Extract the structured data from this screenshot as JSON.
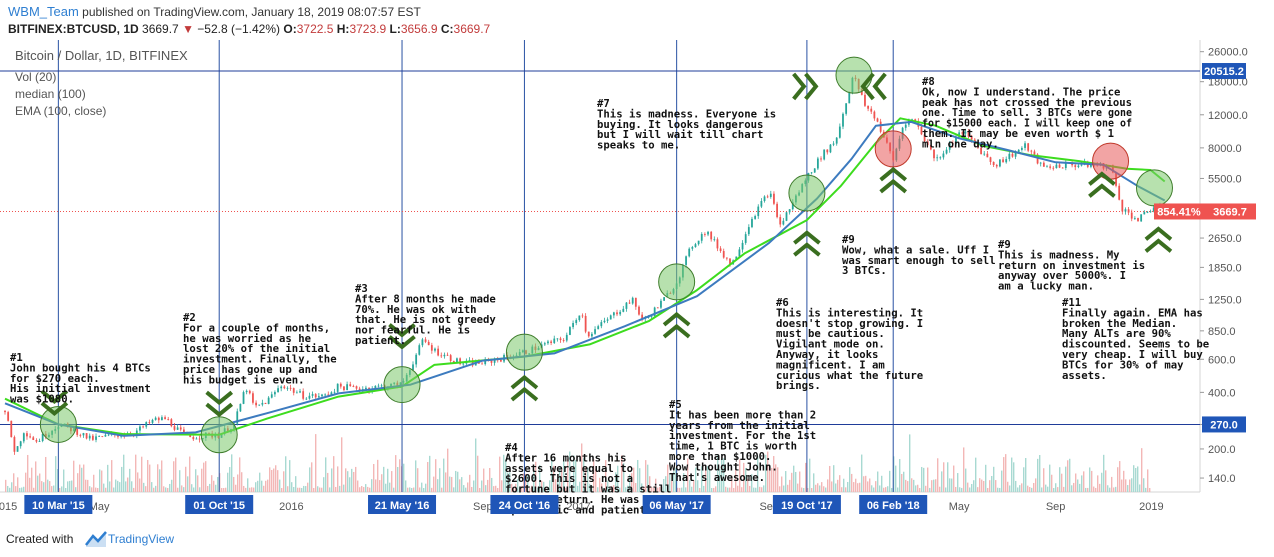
{
  "header": {
    "user": "WBM_Team",
    "published": "published on TradingView.com, January 18, 2019 08:07:57 EST",
    "symbol_line": "BITFINEX:BTCUSD, 1D",
    "price": "3669.7",
    "arrow": "▼",
    "change": "−52.8 (−1.42%)",
    "o_label": "O:",
    "o_val": "3722.5",
    "h_label": "H:",
    "h_val": "3723.9",
    "l_label": "L:",
    "l_val": "3656.9",
    "c_label": "C:",
    "c_val": "3669.7"
  },
  "footer": {
    "created_with": "Created with",
    "brand": "TradingView"
  },
  "colors": {
    "up": "#26a69a",
    "down": "#ef5350",
    "median": "#3d7bbf",
    "ema": "#3ddc1e",
    "chevron": "#3a6e1f",
    "circle_green": "#7cc96b",
    "circle_red": "#e85a5a",
    "vline": "#2952a3",
    "hline": "#1f3c99",
    "label_bg": "#1f56b8",
    "price_tag": "#ef5350"
  },
  "chart_data": {
    "type": "line",
    "title": "Bitcoin / Dollar, 1D, BITFINEX",
    "legend": [
      "Vol (20)",
      "median (100)",
      "EMA (100, close)"
    ],
    "legend_position": "top-left",
    "y_scale": "log",
    "ylim": [
      118,
      30000
    ],
    "xlim": [
      "2015-01-01",
      "2019-03-04"
    ],
    "y_ticks": [
      "26000.0",
      "18000.0",
      "12000.0",
      "8000.0",
      "5500.0",
      "3650.0",
      "2650.0",
      "1850.0",
      "1250.0",
      "850.0",
      "600.0",
      "400.0",
      "270.0",
      "200.0",
      "140.0"
    ],
    "x_ticks": [
      {
        "date": "2015-01-01",
        "label": "2015"
      },
      {
        "date": "2015-05-01",
        "label": "May"
      },
      {
        "date": "2016-01-01",
        "label": "2016"
      },
      {
        "date": "2016-09-01",
        "label": "Sep"
      },
      {
        "date": "2017-01-01",
        "label": "2017"
      },
      {
        "date": "2017-09-01",
        "label": "Sep"
      },
      {
        "date": "2018-01-01",
        "label": "20"
      },
      {
        "date": "2018-05-01",
        "label": "May"
      },
      {
        "date": "2018-09-01",
        "label": "Sep"
      },
      {
        "date": "2019-01-01",
        "label": "2019"
      }
    ],
    "price_series": [
      [
        "2015-01-01",
        320
      ],
      [
        "2015-01-14",
        190
      ],
      [
        "2015-01-25",
        250
      ],
      [
        "2015-02-10",
        220
      ],
      [
        "2015-02-25",
        245
      ],
      [
        "2015-03-10",
        270
      ],
      [
        "2015-04-01",
        250
      ],
      [
        "2015-04-20",
        225
      ],
      [
        "2015-05-15",
        235
      ],
      [
        "2015-06-15",
        245
      ],
      [
        "2015-07-10",
        285
      ],
      [
        "2015-07-25",
        290
      ],
      [
        "2015-08-20",
        230
      ],
      [
        "2015-09-10",
        235
      ],
      [
        "2015-10-01",
        238
      ],
      [
        "2015-10-20",
        270
      ],
      [
        "2015-11-04",
        430
      ],
      [
        "2015-11-15",
        330
      ],
      [
        "2015-12-01",
        360
      ],
      [
        "2015-12-20",
        440
      ],
      [
        "2016-01-15",
        385
      ],
      [
        "2016-02-10",
        380
      ],
      [
        "2016-03-01",
        430
      ],
      [
        "2016-04-01",
        420
      ],
      [
        "2016-05-21",
        440
      ],
      [
        "2016-06-17",
        760
      ],
      [
        "2016-07-01",
        670
      ],
      [
        "2016-08-05",
        570
      ],
      [
        "2016-09-01",
        575
      ],
      [
        "2016-10-01",
        615
      ],
      [
        "2016-10-24",
        655
      ],
      [
        "2016-11-15",
        710
      ],
      [
        "2016-12-15",
        780
      ],
      [
        "2017-01-04",
        1100
      ],
      [
        "2017-01-12",
        800
      ],
      [
        "2017-02-10",
        1000
      ],
      [
        "2017-03-10",
        1250
      ],
      [
        "2017-03-25",
        950
      ],
      [
        "2017-04-20",
        1250
      ],
      [
        "2017-05-06",
        1550
      ],
      [
        "2017-05-25",
        2400
      ],
      [
        "2017-06-12",
        2900
      ],
      [
        "2017-07-15",
        1900
      ],
      [
        "2017-08-10",
        3400
      ],
      [
        "2017-09-01",
        4700
      ],
      [
        "2017-09-15",
        3100
      ],
      [
        "2017-10-19",
        5600
      ],
      [
        "2017-11-08",
        7400
      ],
      [
        "2017-11-25",
        8800
      ],
      [
        "2017-12-17",
        19500
      ],
      [
        "2018-01-01",
        13500
      ],
      [
        "2018-01-15",
        11500
      ],
      [
        "2018-02-06",
        6900
      ],
      [
        "2018-02-20",
        11000
      ],
      [
        "2018-03-05",
        11300
      ],
      [
        "2018-04-01",
        6900
      ],
      [
        "2018-05-05",
        9800
      ],
      [
        "2018-06-15",
        6500
      ],
      [
        "2018-07-25",
        8200
      ],
      [
        "2018-08-15",
        6300
      ],
      [
        "2018-09-15",
        6500
      ],
      [
        "2018-10-15",
        6500
      ],
      [
        "2018-11-10",
        6400
      ],
      [
        "2018-11-25",
        3800
      ],
      [
        "2018-12-15",
        3300
      ],
      [
        "2019-01-07",
        4000
      ],
      [
        "2019-01-18",
        3669.7
      ]
    ],
    "median_100": [
      [
        "2015-01-01",
        350
      ],
      [
        "2015-03-10",
        270
      ],
      [
        "2015-06-01",
        235
      ],
      [
        "2015-09-01",
        245
      ],
      [
        "2015-12-01",
        310
      ],
      [
        "2016-03-01",
        395
      ],
      [
        "2016-06-01",
        440
      ],
      [
        "2016-09-01",
        590
      ],
      [
        "2016-12-01",
        645
      ],
      [
        "2017-03-01",
        900
      ],
      [
        "2017-06-01",
        1300
      ],
      [
        "2017-09-01",
        2500
      ],
      [
        "2017-11-01",
        4300
      ],
      [
        "2017-12-15",
        7000
      ],
      [
        "2018-01-15",
        10500
      ],
      [
        "2018-03-01",
        11000
      ],
      [
        "2018-05-01",
        9000
      ],
      [
        "2018-07-01",
        7800
      ],
      [
        "2018-09-01",
        6700
      ],
      [
        "2018-11-01",
        6500
      ],
      [
        "2018-12-15",
        5000
      ],
      [
        "2019-01-18",
        4200
      ]
    ],
    "ema_100": [
      [
        "2015-01-01",
        370
      ],
      [
        "2015-03-10",
        270
      ],
      [
        "2015-06-01",
        240
      ],
      [
        "2015-10-01",
        238
      ],
      [
        "2015-12-01",
        290
      ],
      [
        "2016-03-01",
        380
      ],
      [
        "2016-05-21",
        430
      ],
      [
        "2016-07-01",
        560
      ],
      [
        "2016-10-24",
        620
      ],
      [
        "2017-01-15",
        720
      ],
      [
        "2017-04-01",
        960
      ],
      [
        "2017-06-01",
        1400
      ],
      [
        "2017-08-01",
        2200
      ],
      [
        "2017-10-19",
        3300
      ],
      [
        "2017-12-01",
        5000
      ],
      [
        "2018-01-15",
        8500
      ],
      [
        "2018-02-15",
        11500
      ],
      [
        "2018-04-01",
        10500
      ],
      [
        "2018-06-01",
        8200
      ],
      [
        "2018-08-01",
        7300
      ],
      [
        "2018-10-01",
        6800
      ],
      [
        "2018-12-01",
        6200
      ],
      [
        "2018-12-31",
        6100
      ],
      [
        "2019-01-18",
        5300
      ]
    ],
    "h_lines": [
      {
        "value": 20515.2,
        "label": "20515.2"
      },
      {
        "value": 270,
        "label": "270.0"
      }
    ],
    "price_line": {
      "value": 3669.7,
      "label": "3669.7",
      "pct": "854.41%"
    },
    "v_markers": [
      {
        "date": "2015-03-10",
        "label": "10 Mar '15"
      },
      {
        "date": "2015-10-01",
        "label": "01 Oct '15"
      },
      {
        "date": "2016-05-21",
        "label": "21 May '16"
      },
      {
        "date": "2016-10-24",
        "label": "24 Oct '16"
      },
      {
        "date": "2017-05-06",
        "label": "06 May '17"
      },
      {
        "date": "2017-10-19",
        "label": "19 Oct '17"
      },
      {
        "date": "2018-02-06",
        "label": "06 Feb '18"
      }
    ],
    "circles": [
      {
        "date": "2015-03-10",
        "value": 270,
        "color": "green"
      },
      {
        "date": "2015-10-01",
        "value": 238,
        "color": "green"
      },
      {
        "date": "2016-05-21",
        "value": 440,
        "color": "green"
      },
      {
        "date": "2016-10-24",
        "value": 655,
        "color": "green"
      },
      {
        "date": "2017-05-06",
        "value": 1550,
        "color": "green"
      },
      {
        "date": "2017-10-19",
        "value": 4600,
        "color": "green"
      },
      {
        "date": "2017-12-18",
        "value": 19500,
        "color": "green"
      },
      {
        "date": "2018-02-06",
        "value": 7900,
        "color": "red"
      },
      {
        "date": "2018-11-10",
        "value": 6800,
        "color": "red"
      },
      {
        "date": "2019-01-05",
        "value": 4900,
        "color": "green"
      }
    ],
    "chevrons": [
      {
        "date": "2015-03-05",
        "value": 345,
        "dir": "down"
      },
      {
        "date": "2015-10-01",
        "value": 340,
        "dir": "down"
      },
      {
        "date": "2016-05-21",
        "value": 780,
        "dir": "down"
      },
      {
        "date": "2016-10-24",
        "value": 430,
        "dir": "up"
      },
      {
        "date": "2017-05-06",
        "value": 930,
        "dir": "up"
      },
      {
        "date": "2017-10-19",
        "value": 2530,
        "dir": "up"
      },
      {
        "date": "2017-10-19",
        "value": 17000,
        "dir": "right"
      },
      {
        "date": "2018-01-10",
        "value": 17000,
        "dir": "left"
      },
      {
        "date": "2018-02-06",
        "value": 5500,
        "dir": "up"
      },
      {
        "date": "2018-10-30",
        "value": 5200,
        "dir": "up"
      },
      {
        "date": "2019-01-10",
        "value": 2650,
        "dir": "up"
      }
    ],
    "annotations": [
      {
        "x": 10,
        "y": 321,
        "lines": [
          "#1",
          "John bought his 4 BTCs",
          "for $270 each.",
          "His initial investment",
          "was $1080."
        ]
      },
      {
        "x": 183,
        "y": 281,
        "lines": [
          "#2",
          "For a couple of months,",
          "he was worried as he",
          "lost 20% of the initial",
          "investment. Finally, the",
          "price has gone up and",
          "his budget is even."
        ]
      },
      {
        "x": 355,
        "y": 252,
        "lines": [
          "#3",
          "After 8 months he made",
          "70%. He was ok with",
          "that. He is not greedy",
          "nor fearful. He is",
          "patient."
        ]
      },
      {
        "x": 505,
        "y": 411,
        "lines": [
          "#4",
          "After 16 months his",
          "assets were equal to",
          "$2600. This is not a",
          "fortune but it was a still",
          "decent return. He was",
          "optimistic and patient."
        ]
      },
      {
        "x": 597,
        "y": 67,
        "lines": [
          "#7",
          "This is madness. Everyone is",
          "buying. It looks dangerous",
          "but I will wait till chart",
          "speaks to me."
        ]
      },
      {
        "x": 669,
        "y": 368,
        "lines": [
          "#5",
          "It has been more than 2",
          "years from the initial",
          "investment. For the 1st",
          "time, 1 BTC is worth",
          "more than $1000.",
          "Wow thought John.",
          "That's awesome."
        ]
      },
      {
        "x": 776,
        "y": 266,
        "lines": [
          "#6",
          "This is interesting. It",
          "doesn't stop growing. I",
          "must be cautious.",
          "Vigilant mode on.",
          "Anyway, it looks",
          "magnificent. I am",
          "curious what the future",
          "brings."
        ]
      },
      {
        "x": 842,
        "y": 203,
        "lines": [
          "#9",
          "Wow, what a sale. Uff I",
          "was smart enough to sell",
          "3 BTCs."
        ]
      },
      {
        "x": 922,
        "y": 45,
        "lines": [
          "#8",
          "Ok, now I understand. The price",
          "peak has not crossed the previous",
          "one. Time to sell. 3 BTCs were gone",
          "for $15000 each. I will keep one of",
          "them. It may be even worth $ 1",
          "mln one day."
        ]
      },
      {
        "x": 998,
        "y": 208,
        "lines": [
          "#9",
          "This is madness. My",
          "return on investment is",
          "anyway over 5000%. I",
          "am a lucky man."
        ]
      },
      {
        "x": 1062,
        "y": 266,
        "lines": [
          "#11",
          "Finally again. EMA has",
          "broken the Median.",
          "Many ALTs are 90%",
          "discounted. Seems to be",
          "very cheap. I will buy",
          "BTCs for 30% of may",
          "assets."
        ]
      }
    ]
  }
}
